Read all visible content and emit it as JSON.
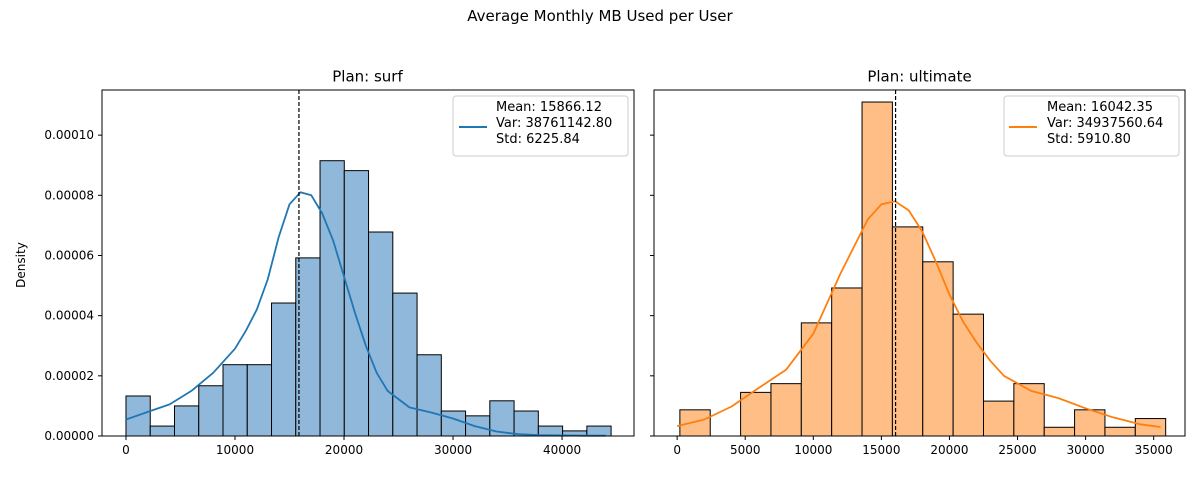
{
  "figure": {
    "suptitle": "Average Monthly MB Used per User"
  },
  "chart_data": [
    {
      "type": "histogram",
      "title": "Plan: surf",
      "xlabel": "",
      "ylabel": "Density",
      "xlim": [
        -2200,
        46600
      ],
      "ylim": [
        0,
        0.000115
      ],
      "xticks": [
        0,
        10000,
        20000,
        30000,
        40000
      ],
      "yticks": [
        0,
        2e-05,
        4e-05,
        6e-05,
        8e-05,
        0.0001
      ],
      "ytick_labels": [
        "0.00000",
        "0.00002",
        "0.00004",
        "0.00006",
        "0.00008",
        "0.00010"
      ],
      "color": "#1f77b4",
      "bar_fill": "#8fb8da",
      "bin_width": 2225,
      "bins": [
        {
          "x0": 0,
          "value": 1.33e-05
        },
        {
          "x0": 2225,
          "value": 3.3e-06
        },
        {
          "x0": 4450,
          "value": 1e-05
        },
        {
          "x0": 6675,
          "value": 1.67e-05
        },
        {
          "x0": 8900,
          "value": 2.37e-05
        },
        {
          "x0": 11125,
          "value": 2.37e-05
        },
        {
          "x0": 13350,
          "value": 4.42e-05
        },
        {
          "x0": 15575,
          "value": 5.92e-05
        },
        {
          "x0": 17800,
          "value": 9.15e-05
        },
        {
          "x0": 20025,
          "value": 8.82e-05
        },
        {
          "x0": 22250,
          "value": 6.78e-05
        },
        {
          "x0": 24475,
          "value": 4.75e-05
        },
        {
          "x0": 26700,
          "value": 2.7e-05
        },
        {
          "x0": 28925,
          "value": 8.3e-06
        },
        {
          "x0": 31150,
          "value": 6.7e-06
        },
        {
          "x0": 33375,
          "value": 1.17e-05
        },
        {
          "x0": 35600,
          "value": 8.3e-06
        },
        {
          "x0": 37825,
          "value": 3.3e-06
        },
        {
          "x0": 40050,
          "value": 1.7e-06
        },
        {
          "x0": 42275,
          "value": 3.3e-06
        }
      ],
      "kde": {
        "x": [
          0,
          2000,
          4000,
          6000,
          8000,
          10000,
          11000,
          12000,
          13000,
          14000,
          15000,
          16000,
          17000,
          18000,
          19000,
          20000,
          21000,
          22000,
          23000,
          24000,
          26000,
          28000,
          30000,
          32000,
          34000,
          36000,
          38000,
          40000,
          42000,
          44000
        ],
        "y": [
          5.5e-06,
          8e-06,
          1.05e-05,
          1.5e-05,
          2.1e-05,
          2.9e-05,
          3.5e-05,
          4.2e-05,
          5.2e-05,
          6.6e-05,
          7.7e-05,
          8.1e-05,
          8e-05,
          7.4e-05,
          6.5e-05,
          5.3e-05,
          4.1e-05,
          3e-05,
          2.1e-05,
          1.5e-05,
          9.5e-06,
          7.8e-06,
          5.8e-06,
          3.3e-06,
          1.5e-06,
          6e-07,
          3e-07,
          2e-07,
          1e-07,
          1e-07
        ]
      },
      "mean": 15866.12,
      "legend": {
        "position": "upper right",
        "lines": [
          "Mean: 15866.12",
          "Var: 38761142.80",
          "Std: 6225.84"
        ]
      }
    },
    {
      "type": "histogram",
      "title": "Plan: ultimate",
      "xlabel": "",
      "ylabel": "",
      "xlim": [
        -1700,
        37300
      ],
      "ylim": [
        0,
        0.000115
      ],
      "xticks": [
        0,
        5000,
        10000,
        15000,
        20000,
        25000,
        30000,
        35000
      ],
      "yticks": [
        0,
        2e-05,
        4e-05,
        6e-05,
        8e-05,
        0.0001
      ],
      "color": "#ff7f0e",
      "bar_fill": "#ffbe86",
      "bin_width": 2230,
      "bins": [
        {
          "x0": 200,
          "value": 8.7e-06
        },
        {
          "x0": 2430,
          "value": 0
        },
        {
          "x0": 4660,
          "value": 1.45e-05
        },
        {
          "x0": 6890,
          "value": 1.74e-05
        },
        {
          "x0": 9120,
          "value": 3.76e-05
        },
        {
          "x0": 11350,
          "value": 4.92e-05
        },
        {
          "x0": 13580,
          "value": 0.000111
        },
        {
          "x0": 15810,
          "value": 6.95e-05
        },
        {
          "x0": 18040,
          "value": 5.79e-05
        },
        {
          "x0": 20270,
          "value": 4.05e-05
        },
        {
          "x0": 22500,
          "value": 1.16e-05
        },
        {
          "x0": 24730,
          "value": 1.74e-05
        },
        {
          "x0": 26960,
          "value": 2.9e-06
        },
        {
          "x0": 29190,
          "value": 8.7e-06
        },
        {
          "x0": 31420,
          "value": 2.9e-06
        },
        {
          "x0": 33650,
          "value": 5.8e-06
        }
      ],
      "kde": {
        "x": [
          0,
          2000,
          4000,
          6000,
          8000,
          10000,
          11000,
          12000,
          13000,
          14000,
          15000,
          16000,
          17000,
          18000,
          19000,
          20000,
          21000,
          22000,
          23000,
          24000,
          26000,
          28000,
          30000,
          32000,
          34000,
          35500
        ],
        "y": [
          3.3e-06,
          5.5e-06,
          9.8e-06,
          1.6e-05,
          2.2e-05,
          3.4e-05,
          4.4e-05,
          5.4e-05,
          6.3e-05,
          7.2e-05,
          7.7e-05,
          7.8e-05,
          7.5e-05,
          6.8e-05,
          5.8e-05,
          4.7e-05,
          3.8e-05,
          3.1e-05,
          2.5e-05,
          2e-05,
          1.5e-05,
          1.26e-05,
          9.2e-06,
          6.2e-06,
          3.9e-06,
          3e-06
        ]
      },
      "mean": 16042.35,
      "legend": {
        "position": "upper right",
        "lines": [
          "Mean: 16042.35",
          "Var: 34937560.64",
          "Std: 5910.80"
        ]
      }
    }
  ]
}
